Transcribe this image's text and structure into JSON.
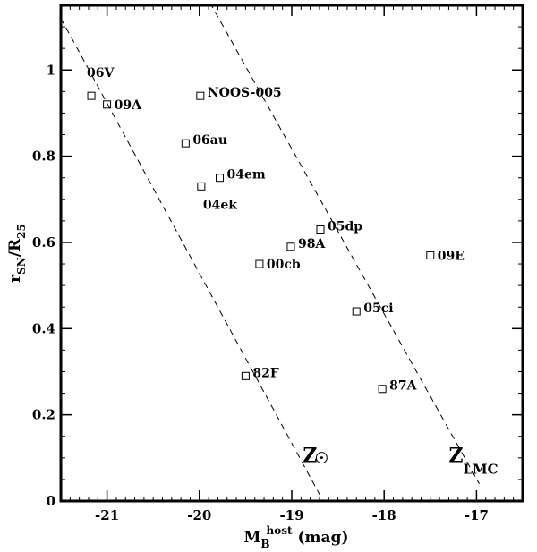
{
  "chart_data": {
    "type": "scatter",
    "title": "",
    "xlabel": {
      "base": "M",
      "sub": "B",
      "sup": "host",
      "unit": "(mag)"
    },
    "ylabel": {
      "base": "r",
      "sub": "SN",
      "mid": "/R",
      "sub2": "25"
    },
    "xlim": [
      -21.5,
      -16.5
    ],
    "ylim": [
      0,
      1.15
    ],
    "x_ticks": [
      {
        "value": -21,
        "label": "-21"
      },
      {
        "value": -20,
        "label": "-20"
      },
      {
        "value": -19,
        "label": "-19"
      },
      {
        "value": -18,
        "label": "-18"
      },
      {
        "value": -17,
        "label": "-17"
      }
    ],
    "y_ticks": [
      {
        "value": 0,
        "label": "0"
      },
      {
        "value": 0.2,
        "label": "0.2"
      },
      {
        "value": 0.4,
        "label": "0.4"
      },
      {
        "value": 0.6,
        "label": "0.6"
      },
      {
        "value": 0.8,
        "label": "0.8"
      },
      {
        "value": 1,
        "label": "1"
      }
    ],
    "grid": false,
    "marker": "open-square",
    "points": [
      {
        "label": "06V",
        "x": -21.17,
        "y": 0.94
      },
      {
        "label": "09A",
        "x": -21.0,
        "y": 0.92
      },
      {
        "label": "NOOS-005",
        "x": -19.99,
        "y": 0.94
      },
      {
        "label": "06au",
        "x": -20.15,
        "y": 0.83
      },
      {
        "label": "04em",
        "x": -19.78,
        "y": 0.75
      },
      {
        "label": "04ek",
        "x": -19.98,
        "y": 0.73
      },
      {
        "label": "05dp",
        "x": -18.69,
        "y": 0.63
      },
      {
        "label": "98A",
        "x": -19.01,
        "y": 0.59
      },
      {
        "label": "00cb",
        "x": -19.35,
        "y": 0.55
      },
      {
        "label": "09E",
        "x": -17.5,
        "y": 0.57
      },
      {
        "label": "05ci",
        "x": -18.3,
        "y": 0.44
      },
      {
        "label": "82F",
        "x": -19.5,
        "y": 0.29
      },
      {
        "label": "87A",
        "x": -18.02,
        "y": 0.26
      }
    ],
    "reference_lines": [
      {
        "name": "solar",
        "style": "dashed",
        "x1": -21.5,
        "y1": 1.12,
        "x2": -18.66,
        "y2": 0.0
      },
      {
        "name": "lmc",
        "style": "dashed",
        "x1": -20.0,
        "y1": 1.2,
        "x2": -16.97,
        "y2": 0.04
      }
    ],
    "annotations": [
      {
        "name": "z-sun",
        "text": "Z",
        "symbol": "sun",
        "x": -18.88,
        "y": 0.09
      },
      {
        "name": "z-lmc",
        "text": "Z",
        "sub": "LMC",
        "x": -17.3,
        "y": 0.09
      }
    ]
  }
}
